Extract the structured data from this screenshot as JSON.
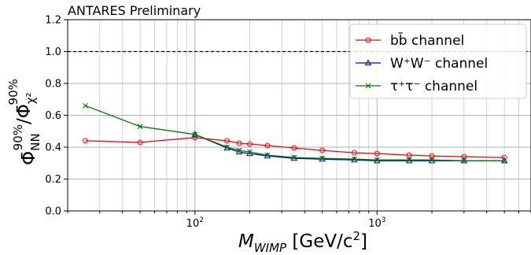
{
  "chart_data": {
    "type": "line",
    "title": "ANTARES Preliminary",
    "xlabel": "M_WIMP [GeV/c²]",
    "ylabel": "Φ̄_NN^90% / Φ̄_χ²^90%",
    "x_scale": "log",
    "xlim": [
      20,
      7000
    ],
    "ylim": [
      0.0,
      1.2
    ],
    "grid": true,
    "legend_position": "upper-right",
    "y_ticks": [
      "0.0",
      "0.2",
      "0.4",
      "0.6",
      "0.8",
      "1.0",
      "1.2"
    ],
    "x_ticks": [
      {
        "value": 100,
        "base": "10",
        "exp": "2"
      },
      {
        "value": 1000,
        "base": "10",
        "exp": "3"
      }
    ],
    "reference_line": {
      "y": 1.0,
      "style": "dashed",
      "color": "#000000"
    },
    "series": [
      {
        "name": "bb̄ channel",
        "color": "#ff0000",
        "marker": "circle",
        "x": [
          25,
          50,
          100,
          150,
          175,
          200,
          250,
          350,
          500,
          750,
          1000,
          1500,
          2000,
          3000,
          5000
        ],
        "y": [
          0.44,
          0.43,
          0.46,
          0.44,
          0.425,
          0.42,
          0.41,
          0.395,
          0.38,
          0.365,
          0.36,
          0.35,
          0.345,
          0.34,
          0.335
        ]
      },
      {
        "name": "W⁺W⁻ channel",
        "color": "#0000cc",
        "marker": "triangle",
        "x": [
          100,
          150,
          175,
          200,
          250,
          350,
          500,
          750,
          1000,
          1500,
          2000,
          3000,
          5000
        ],
        "y": [
          0.48,
          0.395,
          0.37,
          0.36,
          0.345,
          0.33,
          0.325,
          0.32,
          0.315,
          0.315,
          0.315,
          0.315,
          0.315
        ]
      },
      {
        "name": "τ⁺τ⁻ channel",
        "color": "#008000",
        "marker": "x",
        "x": [
          25,
          50,
          100,
          150,
          175,
          200,
          250,
          350,
          500,
          750,
          1000,
          1500,
          2000,
          3000,
          5000
        ],
        "y": [
          0.66,
          0.53,
          0.48,
          0.4,
          0.38,
          0.37,
          0.35,
          0.335,
          0.33,
          0.325,
          0.32,
          0.32,
          0.32,
          0.315,
          0.315
        ]
      }
    ]
  }
}
